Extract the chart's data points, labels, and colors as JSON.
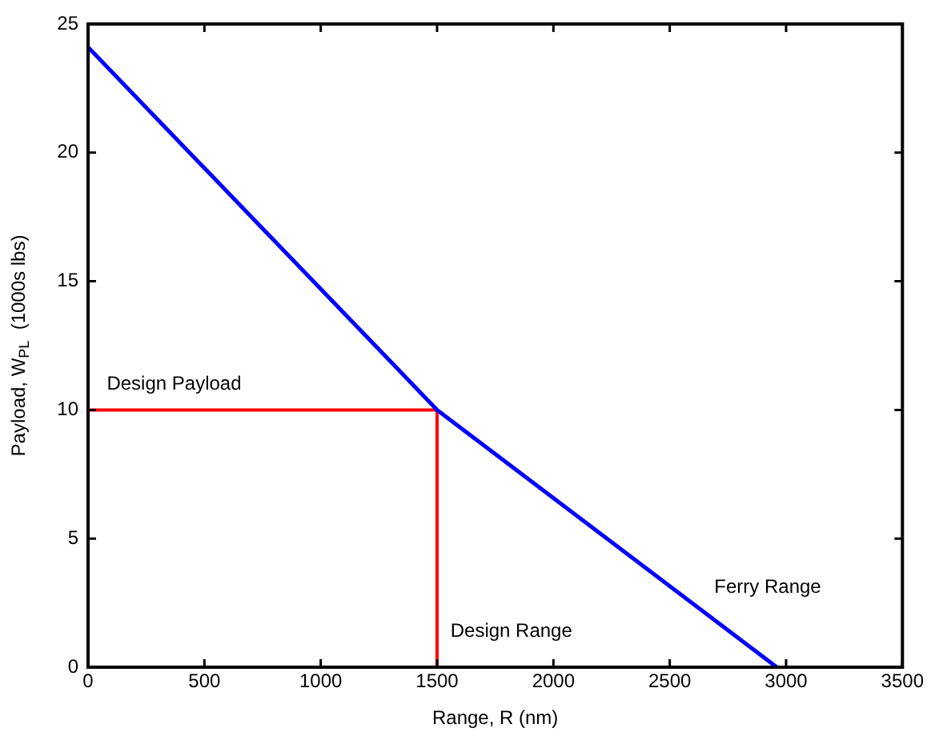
{
  "chart_data": {
    "type": "line",
    "xlabel": "Range, R (nm)",
    "ylabel": "Payload, W$_{PL}$  (1000s lbs)",
    "xlim": [
      0,
      3500
    ],
    "xticks": [
      0,
      500,
      1000,
      1500,
      2000,
      2500,
      3000,
      3500
    ],
    "ylim": [
      0,
      25
    ],
    "yticks": [
      0,
      5,
      10,
      15,
      20,
      25
    ],
    "grid": false,
    "legend": false,
    "marker": "none",
    "line_style": "solid",
    "series": [
      {
        "color": "#0000ff",
        "x": [
          0,
          1500,
          2960
        ],
        "values": [
          24.1,
          10,
          0
        ]
      },
      {
        "color": "#ff0000",
        "x": [
          0,
          1500,
          1500
        ],
        "values": [
          10,
          10,
          0
        ]
      }
    ],
    "annotations": [
      "Design Payload",
      "Design Range",
      "Ferry Range"
    ]
  }
}
